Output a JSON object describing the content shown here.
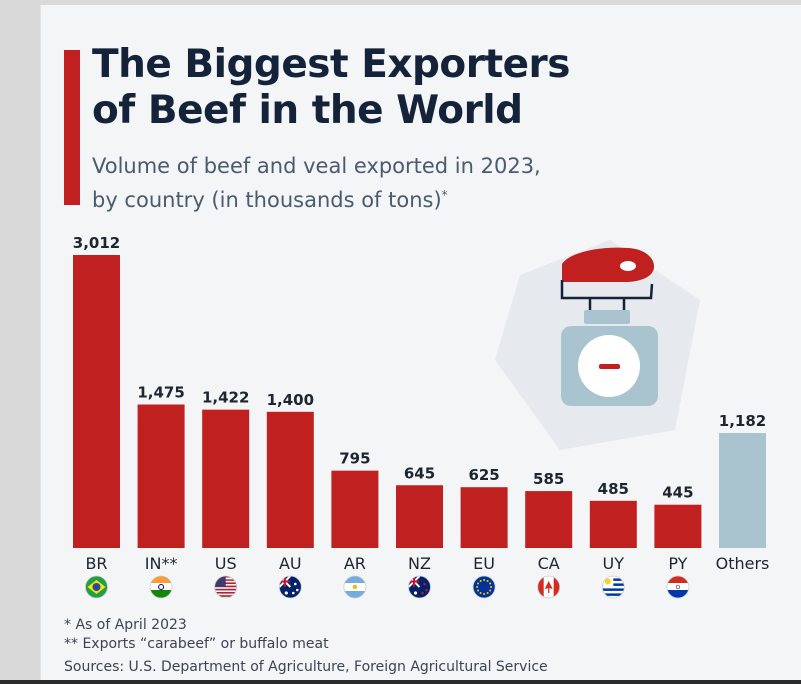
{
  "header": {
    "title_line1": "The Biggest Exporters",
    "title_line2": "of Beef in the World",
    "subtitle_line1": "Volume of beef and veal exported in 2023,",
    "subtitle_line2": "by country (in thousands of tons)",
    "subtitle_mark": "*"
  },
  "chart_data": {
    "type": "bar",
    "categories": [
      "BR",
      "IN**",
      "US",
      "AU",
      "AR",
      "NZ",
      "EU",
      "CA",
      "UY",
      "PY",
      "Others"
    ],
    "values": [
      3012,
      1475,
      1422,
      1400,
      795,
      645,
      625,
      585,
      485,
      445,
      1182
    ],
    "value_labels": [
      "3,012",
      "1,475",
      "1,422",
      "1,400",
      "795",
      "645",
      "625",
      "585",
      "485",
      "445",
      "1,182"
    ],
    "ylim": [
      0,
      3012
    ],
    "grid": false,
    "colors": {
      "country": "#c0201f",
      "others": "#a9c4cf"
    },
    "flags": [
      "brazil-flag-icon",
      "india-flag-icon",
      "usa-flag-icon",
      "australia-flag-icon",
      "argentina-flag-icon",
      "new-zealand-flag-icon",
      "eu-flag-icon",
      "canada-flag-icon",
      "uruguay-flag-icon",
      "paraguay-flag-icon",
      null
    ]
  },
  "notes": {
    "note1": "*   As of April 2023",
    "note2": "** Exports “carabeef” or buffalo meat",
    "sources": "Sources: U.S. Department of Agriculture, Foreign Agricultural Service"
  },
  "illustration": {
    "icon": "meat-on-scale-icon"
  }
}
